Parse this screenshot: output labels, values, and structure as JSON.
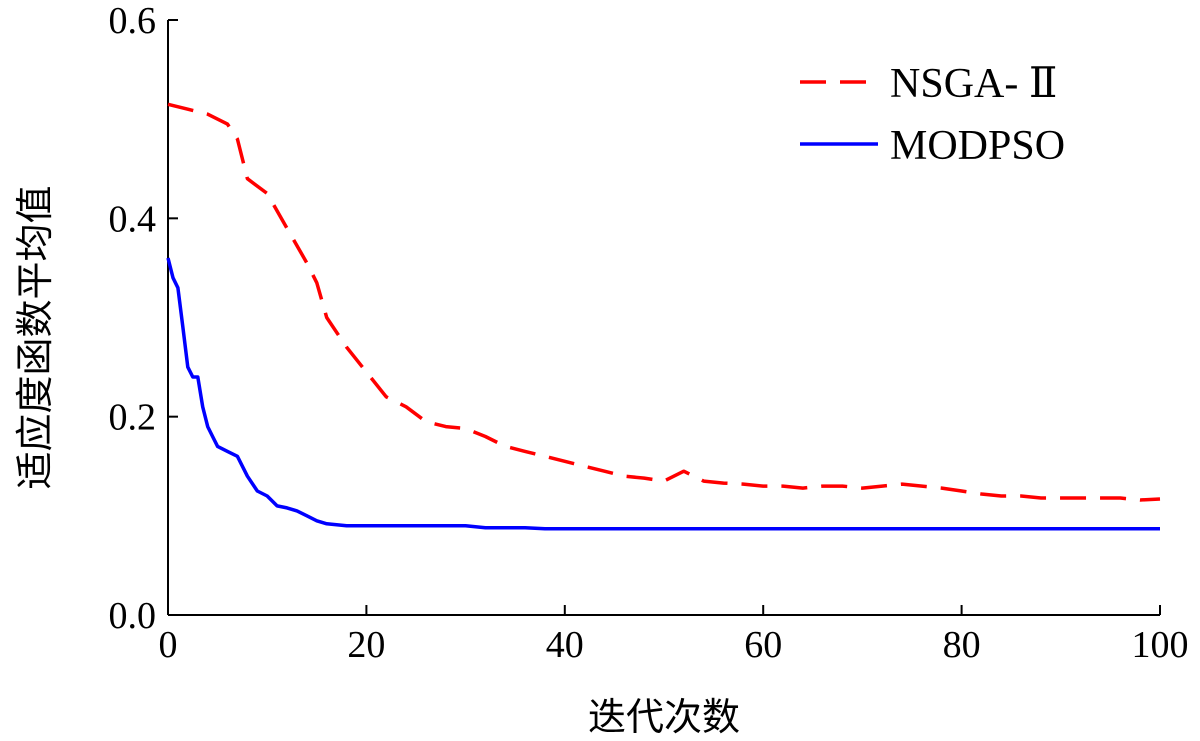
{
  "chart_data": {
    "type": "line",
    "title": "",
    "xlabel": "迭代次数",
    "ylabel": "适应度函数平均值",
    "xlim": [
      0,
      100
    ],
    "ylim": [
      0,
      0.6
    ],
    "xticks": [
      "0",
      "20",
      "40",
      "60",
      "80",
      "100"
    ],
    "yticks": [
      "0.0",
      "0.2",
      "0.4",
      "0.6"
    ],
    "grid": false,
    "legend_position": "top-right",
    "series": [
      {
        "name": "NSGA- Ⅱ",
        "color": "#ff0000",
        "style": "dashed",
        "x": [
          0,
          2,
          4,
          6,
          7,
          8,
          10,
          12,
          14,
          15,
          16,
          18,
          20,
          22,
          24,
          26,
          28,
          30,
          32,
          34,
          36,
          38,
          40,
          42,
          44,
          46,
          48,
          50,
          52,
          54,
          56,
          58,
          60,
          62,
          64,
          66,
          68,
          70,
          72,
          74,
          76,
          78,
          80,
          82,
          84,
          86,
          88,
          90,
          92,
          94,
          96,
          98,
          100
        ],
        "y": [
          0.515,
          0.51,
          0.505,
          0.495,
          0.48,
          0.44,
          0.425,
          0.39,
          0.355,
          0.335,
          0.3,
          0.27,
          0.245,
          0.22,
          0.21,
          0.195,
          0.19,
          0.188,
          0.18,
          0.17,
          0.165,
          0.16,
          0.155,
          0.15,
          0.145,
          0.14,
          0.138,
          0.135,
          0.145,
          0.135,
          0.133,
          0.132,
          0.13,
          0.13,
          0.128,
          0.13,
          0.13,
          0.128,
          0.13,
          0.132,
          0.13,
          0.128,
          0.125,
          0.122,
          0.12,
          0.12,
          0.118,
          0.118,
          0.118,
          0.118,
          0.118,
          0.116,
          0.117
        ]
      },
      {
        "name": "MODPSO",
        "color": "#0000ff",
        "style": "solid",
        "x": [
          0,
          0.5,
          1,
          1.5,
          2,
          2.5,
          3,
          3.5,
          4,
          4.5,
          5,
          6,
          7,
          8,
          9,
          10,
          11,
          12,
          13,
          14,
          15,
          16,
          18,
          20,
          22,
          24,
          26,
          28,
          30,
          32,
          34,
          36,
          38,
          40,
          45,
          50,
          60,
          70,
          80,
          90,
          100
        ],
        "y": [
          0.36,
          0.34,
          0.33,
          0.29,
          0.25,
          0.24,
          0.24,
          0.21,
          0.19,
          0.18,
          0.17,
          0.165,
          0.16,
          0.14,
          0.125,
          0.12,
          0.11,
          0.108,
          0.105,
          0.1,
          0.095,
          0.092,
          0.09,
          0.09,
          0.09,
          0.09,
          0.09,
          0.09,
          0.09,
          0.088,
          0.088,
          0.088,
          0.087,
          0.087,
          0.087,
          0.087,
          0.087,
          0.087,
          0.087,
          0.087,
          0.087
        ]
      }
    ]
  }
}
